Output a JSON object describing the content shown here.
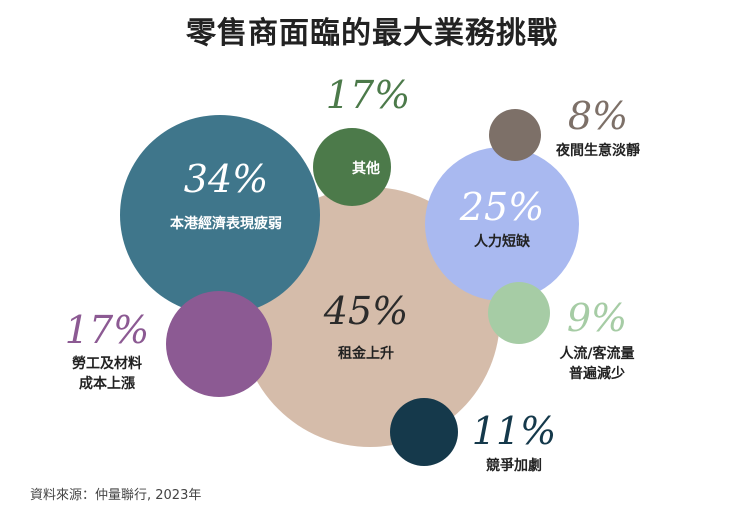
{
  "title": "零售商面臨的最大業務挑戰",
  "source": "資料來源：仲量聯行, 2023年",
  "chart_data": {
    "type": "bubble",
    "series": [
      {
        "label": "本港經濟表現疲弱",
        "value": 34,
        "value_text": "34%",
        "color": "#3F768B"
      },
      {
        "label": "租金上升",
        "value": 45,
        "value_text": "45%",
        "color": "#D5BCAA"
      },
      {
        "label": "其他",
        "value": 17,
        "value_text": "17%",
        "color": "#4C7A4A"
      },
      {
        "label": "夜間生意淡靜",
        "value": 8,
        "value_text": "8%",
        "color": "#7D7068"
      },
      {
        "label": "人力短缺",
        "value": 25,
        "value_text": "25%",
        "color": "#A9B9F0"
      },
      {
        "label": "勞工及材料\n成本上漲",
        "value": 17,
        "value_text": "17%",
        "color": "#8C5A93"
      },
      {
        "label": "人流/客流量\n普遍減少",
        "value": 9,
        "value_text": "9%",
        "color": "#A6CCA5"
      },
      {
        "label": "競爭加劇",
        "value": 11,
        "value_text": "11%",
        "color": "#15394B"
      }
    ]
  }
}
